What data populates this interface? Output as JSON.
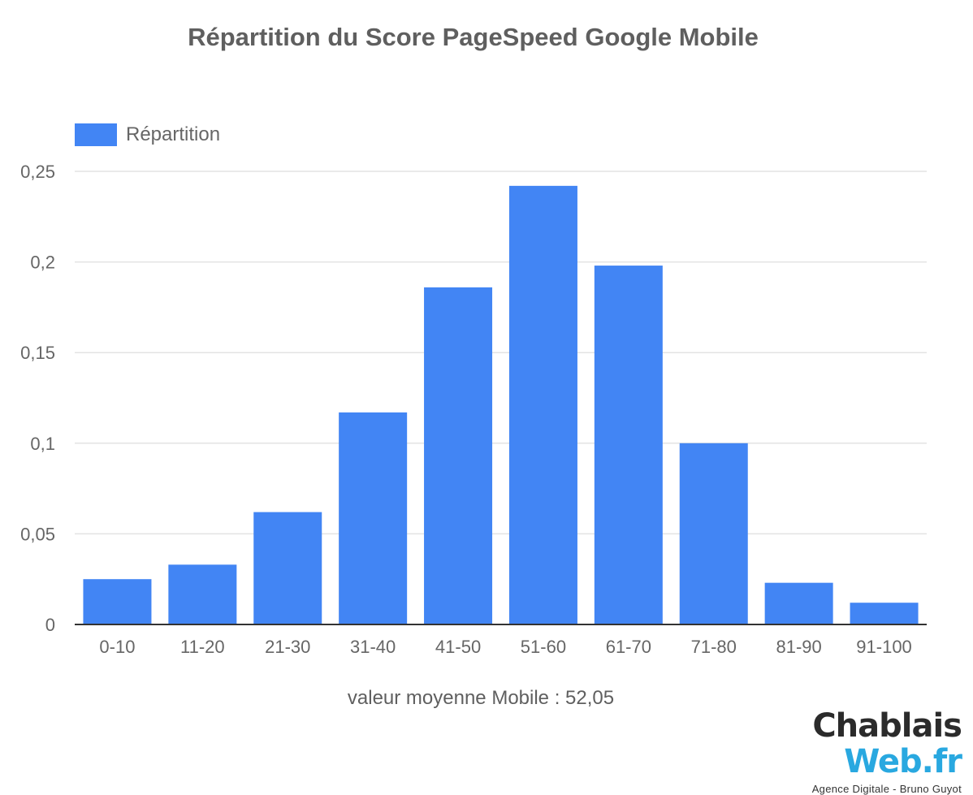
{
  "chart_data": {
    "type": "bar",
    "title": "Répartition du Score PageSpeed Google Mobile",
    "categories": [
      "0-10",
      "11-20",
      "21-30",
      "31-40",
      "41-50",
      "51-60",
      "61-70",
      "71-80",
      "81-90",
      "91-100"
    ],
    "series": [
      {
        "name": "Répartition",
        "values": [
          0.025,
          0.033,
          0.062,
          0.117,
          0.186,
          0.242,
          0.198,
          0.1,
          0.023,
          0.012
        ],
        "color": "#4285f4"
      }
    ],
    "ylim": [
      0,
      0.25
    ],
    "yticks": [
      0,
      0.05,
      0.1,
      0.15,
      0.2,
      0.25
    ],
    "ytick_labels": [
      "0",
      "0,05",
      "0,1",
      "0,15",
      "0,2",
      "0,25"
    ],
    "grid": true,
    "legend_position": "top-left",
    "annotation": "valeur moyenne Mobile : 52,05"
  },
  "logo": {
    "text_main": "Chablais",
    "text_accent": "Web.fr",
    "tagline": "Agence Digitale - Bruno Guyot"
  }
}
